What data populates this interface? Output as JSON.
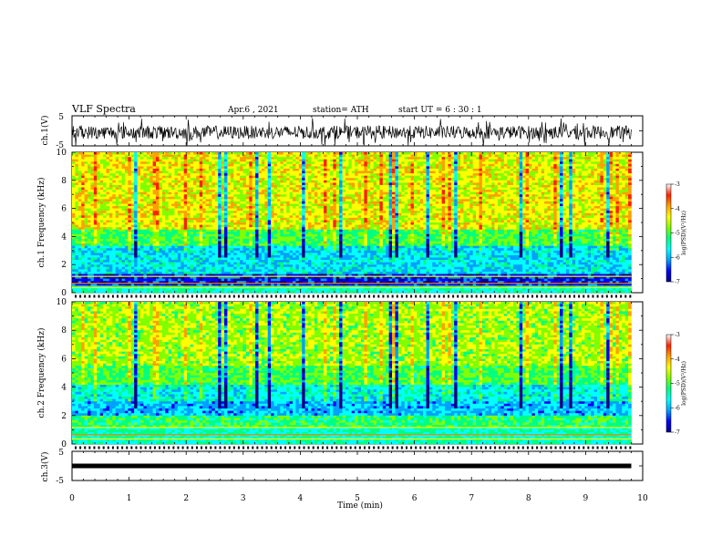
{
  "header": {
    "title": "VLF Spectra",
    "date": "Apr.6 , 2021",
    "station": "station= ATH",
    "start": "start UT = 6 : 30 : 1"
  },
  "chart_data": [
    {
      "type": "line",
      "panel": "ch1-waveform",
      "ylabel": "ch.1(V)",
      "ylim": [
        -5,
        5
      ],
      "yticks": [
        "5",
        "-5"
      ],
      "xlim": [
        0,
        10
      ],
      "description_values": {
        "min": -5,
        "max": 5
      }
    },
    {
      "type": "heatmap",
      "panel": "ch1-spectrogram",
      "ylabel": "ch.1 Frequency (kHz)",
      "xlim": [
        0,
        10
      ],
      "ylim": [
        0,
        10
      ],
      "yticks": [
        "0",
        "2",
        "4",
        "6",
        "8",
        "10"
      ],
      "colorbar": {
        "label": "log(PSD)(V²/Hz)",
        "ticks": [
          "-3",
          "-4",
          "-5",
          "-6",
          "-7"
        ],
        "range": [
          -7,
          -3
        ]
      }
    },
    {
      "type": "heatmap",
      "panel": "ch2-spectrogram",
      "ylabel": "ch.2 Frequency (kHz)",
      "xlim": [
        0,
        10
      ],
      "ylim": [
        0,
        10
      ],
      "yticks": [
        "0",
        "2",
        "4",
        "6",
        "8",
        "10"
      ],
      "colorbar": {
        "label": "log(PSD)(V²/Hz)",
        "ticks": [
          "-3",
          "-4",
          "-5",
          "-6",
          "-7"
        ],
        "range": [
          -7,
          -3
        ]
      }
    },
    {
      "type": "line",
      "panel": "ch3-waveform",
      "ylabel": "ch.3(V)",
      "ylim": [
        -5,
        5
      ],
      "yticks": [
        "5",
        "-5"
      ],
      "xlim": [
        0,
        10
      ],
      "level": 0
    }
  ],
  "xaxis": {
    "label": "Time (min)",
    "ticks": [
      "0",
      "1",
      "2",
      "3",
      "4",
      "5",
      "6",
      "7",
      "8",
      "9",
      "10"
    ],
    "data_end": 9.8
  },
  "colors": {
    "colormap": [
      "#000080",
      "#0000ff",
      "#00a0ff",
      "#00ffff",
      "#00ff80",
      "#80ff00",
      "#ffff00",
      "#ffa000",
      "#ff2000",
      "#ffffff"
    ]
  }
}
